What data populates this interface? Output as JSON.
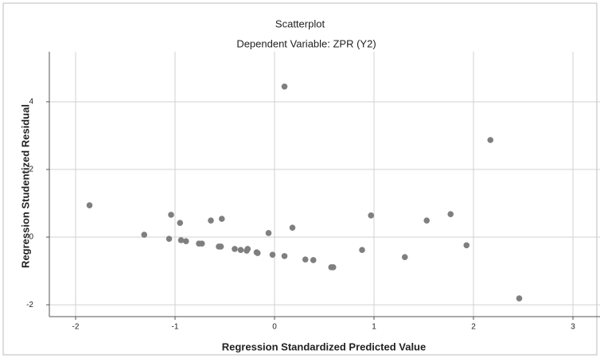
{
  "chart_data": {
    "type": "scatter",
    "title": "Scatterplot",
    "subtitle": "Dependent Variable: ZPR (Y2)",
    "x_label": "Regression Standardized Predicted Value",
    "y_label": "Regression Studentized Residual",
    "x": [
      -1.86,
      -1.31,
      -1.04,
      -1.06,
      -0.95,
      -0.94,
      -0.89,
      -0.76,
      -0.73,
      -0.64,
      -0.56,
      -0.53,
      -0.54,
      -0.4,
      -0.34,
      -0.28,
      -0.27,
      -0.18,
      -0.17,
      -0.06,
      -0.02,
      0.1,
      0.1,
      0.18,
      0.31,
      0.39,
      0.57,
      0.59,
      0.88,
      0.97,
      1.31,
      1.53,
      1.77,
      1.93,
      2.17,
      2.46
    ],
    "values": [
      0.94,
      0.07,
      0.66,
      -0.05,
      0.42,
      -0.09,
      -0.12,
      -0.19,
      -0.19,
      0.49,
      -0.28,
      0.54,
      -0.28,
      -0.35,
      -0.38,
      -0.4,
      -0.35,
      -0.45,
      -0.47,
      0.12,
      -0.52,
      -0.56,
      4.45,
      0.28,
      -0.66,
      -0.68,
      -0.89,
      -0.89,
      -0.38,
      0.64,
      -0.59,
      0.49,
      0.68,
      -0.24,
      2.87,
      -1.81
    ],
    "color": "#7f7f7f",
    "xlim": [
      -2.264,
      3.272
    ],
    "ylim": [
      -2.35,
      5.48
    ],
    "xticks": [
      -2,
      -1,
      0,
      1,
      2,
      3
    ],
    "yticks": [
      -2,
      0,
      2,
      4
    ],
    "grid": true
  }
}
